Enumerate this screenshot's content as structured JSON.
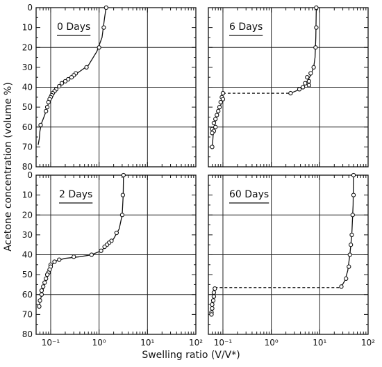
{
  "figure": {
    "ylabel": "Acetone concentration (volume %)",
    "xlabel": "Swelling ratio (V/V*)"
  },
  "chart_data": [
    {
      "type": "line",
      "title": "0 Days",
      "xscale": "log",
      "xlim": [
        0.05,
        100
      ],
      "ylim": [
        0,
        80
      ],
      "y_inverted": true,
      "x_ticks": [
        "10⁻¹",
        "10⁰",
        "10¹",
        "10²"
      ],
      "y_ticks": [
        "0",
        "10",
        "20",
        "30",
        "40",
        "50",
        "60",
        "70",
        "80"
      ],
      "grid": true,
      "series": [
        {
          "points": [
            [
              1.4,
              0
            ],
            [
              1.25,
              10
            ],
            [
              1.0,
              20
            ],
            [
              0.55,
              30
            ],
            [
              0.33,
              33
            ],
            [
              0.3,
              34
            ],
            [
              0.27,
              35
            ],
            [
              0.23,
              36
            ],
            [
              0.2,
              37
            ],
            [
              0.17,
              38
            ],
            [
              0.15,
              39.5
            ],
            [
              0.13,
              41
            ],
            [
              0.12,
              42
            ],
            [
              0.11,
              43
            ],
            [
              0.105,
              44
            ],
            [
              0.1,
              45
            ],
            [
              0.095,
              46
            ],
            [
              0.09,
              47.5
            ],
            [
              0.085,
              50
            ],
            [
              0.08,
              52
            ],
            [
              0.062,
              59
            ]
          ],
          "curve": [
            [
              1.4,
              0
            ],
            [
              1.3,
              5
            ],
            [
              1.15,
              15
            ],
            [
              0.9,
              22
            ],
            [
              0.6,
              29
            ],
            [
              0.35,
              33
            ],
            [
              0.22,
              36.5
            ],
            [
              0.15,
              39.5
            ],
            [
              0.11,
              43
            ],
            [
              0.095,
              46
            ],
            [
              0.085,
              50
            ],
            [
              0.075,
              54
            ],
            [
              0.065,
              58
            ],
            [
              0.06,
              62
            ],
            [
              0.058,
              66
            ],
            [
              0.055,
              69
            ]
          ]
        }
      ]
    },
    {
      "type": "line",
      "title": "6 Days",
      "xscale": "log",
      "xlim": [
        0.05,
        100
      ],
      "ylim": [
        0,
        80
      ],
      "y_inverted": true,
      "x_ticks": [
        "10⁻¹",
        "10⁰",
        "10¹",
        "10²"
      ],
      "y_ticks": [
        "0",
        "10",
        "20",
        "30",
        "40",
        "50",
        "60",
        "70",
        "80"
      ],
      "grid": true,
      "series": [
        {
          "points": [
            [
              8.5,
              0
            ],
            [
              8.5,
              10
            ],
            [
              8.2,
              20
            ],
            [
              7.5,
              30
            ],
            [
              6.5,
              33
            ],
            [
              5.5,
              35
            ],
            [
              6,
              37
            ],
            [
              5,
              38
            ],
            [
              6,
              39
            ],
            [
              4.5,
              40
            ],
            [
              3.8,
              41
            ],
            [
              2.5,
              43
            ],
            [
              0.1,
              43
            ],
            [
              0.095,
              45
            ],
            [
              0.1,
              46
            ],
            [
              0.09,
              47.5
            ],
            [
              0.085,
              50
            ],
            [
              0.08,
              52
            ],
            [
              0.075,
              54
            ],
            [
              0.07,
              56
            ],
            [
              0.065,
              58
            ],
            [
              0.07,
              60
            ],
            [
              0.06,
              61
            ],
            [
              0.065,
              62
            ],
            [
              0.06,
              63
            ],
            [
              0.06,
              70
            ]
          ],
          "curve_upper": [
            [
              8.5,
              0
            ],
            [
              8.3,
              15
            ],
            [
              8,
              25
            ],
            [
              7.5,
              30
            ],
            [
              6.5,
              34
            ],
            [
              5.5,
              37
            ],
            [
              4.5,
              40
            ],
            [
              3.5,
              41.5
            ],
            [
              2.5,
              43
            ]
          ],
          "curve_lower": [
            [
              0.1,
              43
            ],
            [
              0.098,
              46
            ],
            [
              0.09,
              49
            ],
            [
              0.08,
              53
            ],
            [
              0.07,
              57
            ],
            [
              0.064,
              61
            ],
            [
              0.062,
              66
            ],
            [
              0.06,
              71
            ]
          ],
          "jump": {
            "from": [
              0.1,
              43
            ],
            "to": [
              2.5,
              43
            ],
            "style": "dashed"
          }
        }
      ]
    },
    {
      "type": "line",
      "title": "2 Days",
      "xscale": "log",
      "xlim": [
        0.05,
        100
      ],
      "ylim": [
        0,
        80
      ],
      "y_inverted": true,
      "x_ticks": [
        "10⁻¹",
        "10⁰",
        "10¹",
        "10²"
      ],
      "y_ticks": [
        "0",
        "10",
        "20",
        "30",
        "40",
        "50",
        "60",
        "70",
        "80"
      ],
      "grid": true,
      "series": [
        {
          "points": [
            [
              3.2,
              0
            ],
            [
              3.1,
              10
            ],
            [
              3.0,
              20
            ],
            [
              2.3,
              29
            ],
            [
              1.8,
              33
            ],
            [
              1.6,
              34
            ],
            [
              1.45,
              35
            ],
            [
              1.3,
              36
            ],
            [
              1.1,
              38
            ],
            [
              0.7,
              40
            ],
            [
              0.3,
              41
            ],
            [
              0.15,
              42.5
            ],
            [
              0.12,
              43.5
            ],
            [
              0.1,
              45
            ],
            [
              0.1,
              46
            ],
            [
              0.095,
              47.5
            ],
            [
              0.09,
              49
            ],
            [
              0.085,
              50
            ],
            [
              0.08,
              52
            ],
            [
              0.075,
              54
            ],
            [
              0.07,
              56
            ],
            [
              0.065,
              58
            ],
            [
              0.065,
              60
            ],
            [
              0.06,
              63
            ],
            [
              0.058,
              66
            ]
          ],
          "curve": [
            [
              3.2,
              0
            ],
            [
              3.15,
              10
            ],
            [
              3.0,
              20
            ],
            [
              2.6,
              27
            ],
            [
              2.0,
              32
            ],
            [
              1.5,
              35
            ],
            [
              1.1,
              38
            ],
            [
              0.7,
              40
            ],
            [
              0.4,
              41
            ],
            [
              0.2,
              41.8
            ],
            [
              0.13,
              43
            ],
            [
              0.105,
              45
            ],
            [
              0.095,
              48
            ],
            [
              0.085,
              51
            ],
            [
              0.075,
              55
            ],
            [
              0.065,
              60
            ],
            [
              0.058,
              66
            ]
          ]
        }
      ]
    },
    {
      "type": "line",
      "title": "60 Days",
      "xscale": "log",
      "xlim": [
        0.05,
        100
      ],
      "ylim": [
        0,
        80
      ],
      "y_inverted": true,
      "x_ticks": [
        "10⁻¹",
        "10⁰",
        "10¹",
        "10²"
      ],
      "y_ticks": [
        "0",
        "10",
        "20",
        "30",
        "40",
        "50",
        "60",
        "70",
        "80"
      ],
      "grid": true,
      "series": [
        {
          "points": [
            [
              50,
              0
            ],
            [
              50,
              10
            ],
            [
              48,
              20
            ],
            [
              46,
              30
            ],
            [
              44,
              35
            ],
            [
              42,
              40
            ],
            [
              40,
              46
            ],
            [
              35,
              52
            ],
            [
              28,
              56
            ],
            [
              0.068,
              57
            ],
            [
              0.065,
              59
            ],
            [
              0.065,
              61
            ],
            [
              0.063,
              63
            ],
            [
              0.06,
              65
            ],
            [
              0.06,
              67
            ],
            [
              0.058,
              69
            ],
            [
              0.058,
              70
            ]
          ],
          "curve_upper": [
            [
              50,
              0
            ],
            [
              49,
              15
            ],
            [
              46,
              30
            ],
            [
              42,
              40
            ],
            [
              38,
              48
            ],
            [
              33,
              53
            ],
            [
              28,
              56
            ]
          ],
          "curve_lower": [
            [
              0.068,
              57
            ],
            [
              0.065,
              61
            ],
            [
              0.06,
              66
            ],
            [
              0.057,
              70
            ]
          ],
          "jump": {
            "from": [
              0.068,
              56.5
            ],
            "to": [
              28,
              56.5
            ],
            "style": "dashed"
          }
        }
      ]
    }
  ]
}
